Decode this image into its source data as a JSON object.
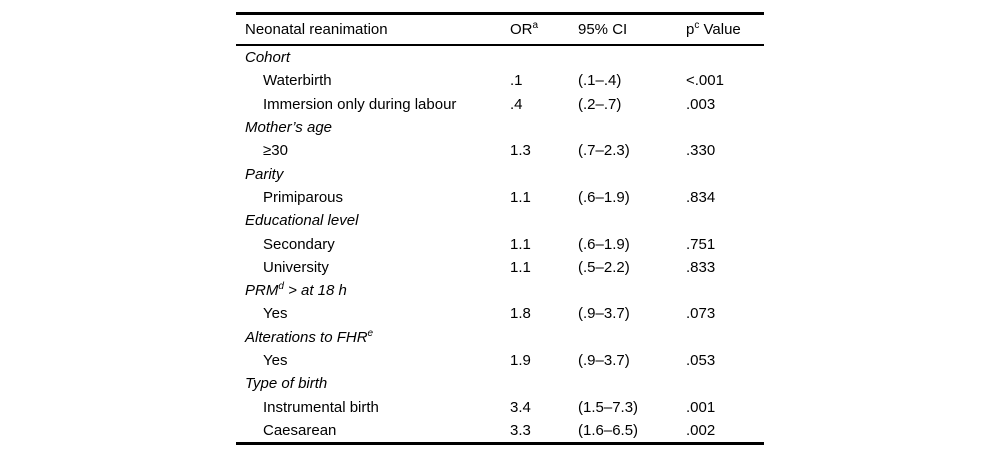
{
  "table": {
    "header": {
      "label": "Neonatal reanimation",
      "or": "OR",
      "or_sup": "a",
      "ci": "95% CI",
      "p": "p",
      "p_sup": "c",
      "p_suffix": " Value"
    },
    "rows": [
      {
        "type": "category",
        "label": "Cohort",
        "sup": "",
        "label_suffix": "",
        "or": "",
        "ci": "",
        "p": ""
      },
      {
        "type": "item",
        "label": "Waterbirth",
        "sup": "",
        "label_suffix": "",
        "or": ".1",
        "ci": "(.1–.4)",
        "p": "<.001"
      },
      {
        "type": "item",
        "label": "Immersion only during labour",
        "sup": "",
        "label_suffix": "",
        "or": ".4",
        "ci": "(.2–.7)",
        "p": ".003"
      },
      {
        "type": "category",
        "label": "Mother’s age",
        "sup": "",
        "label_suffix": "",
        "or": "",
        "ci": "",
        "p": ""
      },
      {
        "type": "item",
        "label": "≥30",
        "sup": "",
        "label_suffix": "",
        "or": "1.3",
        "ci": "(.7–2.3)",
        "p": ".330"
      },
      {
        "type": "category",
        "label": "Parity",
        "sup": "",
        "label_suffix": "",
        "or": "",
        "ci": "",
        "p": ""
      },
      {
        "type": "item",
        "label": "Primiparous",
        "sup": "",
        "label_suffix": "",
        "or": "1.1",
        "ci": "(.6–1.9)",
        "p": ".834"
      },
      {
        "type": "category",
        "label": "Educational level",
        "sup": "",
        "label_suffix": "",
        "or": "",
        "ci": "",
        "p": ""
      },
      {
        "type": "item",
        "label": "Secondary",
        "sup": "",
        "label_suffix": "",
        "or": "1.1",
        "ci": "(.6–1.9)",
        "p": ".751"
      },
      {
        "type": "item",
        "label": "University",
        "sup": "",
        "label_suffix": "",
        "or": "1.1",
        "ci": "(.5–2.2)",
        "p": ".833"
      },
      {
        "type": "category",
        "label": "PRM",
        "sup": "d",
        "label_suffix": " > at 18 h",
        "or": "",
        "ci": "",
        "p": ""
      },
      {
        "type": "item",
        "label": "Yes",
        "sup": "",
        "label_suffix": "",
        "or": "1.8",
        "ci": "(.9–3.7)",
        "p": ".073"
      },
      {
        "type": "category",
        "label": "Alterations to FHR",
        "sup": "e",
        "label_suffix": "",
        "or": "",
        "ci": "",
        "p": ""
      },
      {
        "type": "item",
        "label": "Yes",
        "sup": "",
        "label_suffix": "",
        "or": "1.9",
        "ci": "(.9–3.7)",
        "p": ".053"
      },
      {
        "type": "category",
        "label": "Type of birth",
        "sup": "",
        "label_suffix": "",
        "or": "",
        "ci": "",
        "p": ""
      },
      {
        "type": "item",
        "label": "Instrumental birth",
        "sup": "",
        "label_suffix": "",
        "or": "3.4",
        "ci": "(1.5–7.3)",
        "p": ".001"
      },
      {
        "type": "item",
        "label": "Caesarean",
        "sup": "",
        "label_suffix": "",
        "or": "3.3",
        "ci": "(1.6–6.5)",
        "p": ".002"
      }
    ]
  }
}
